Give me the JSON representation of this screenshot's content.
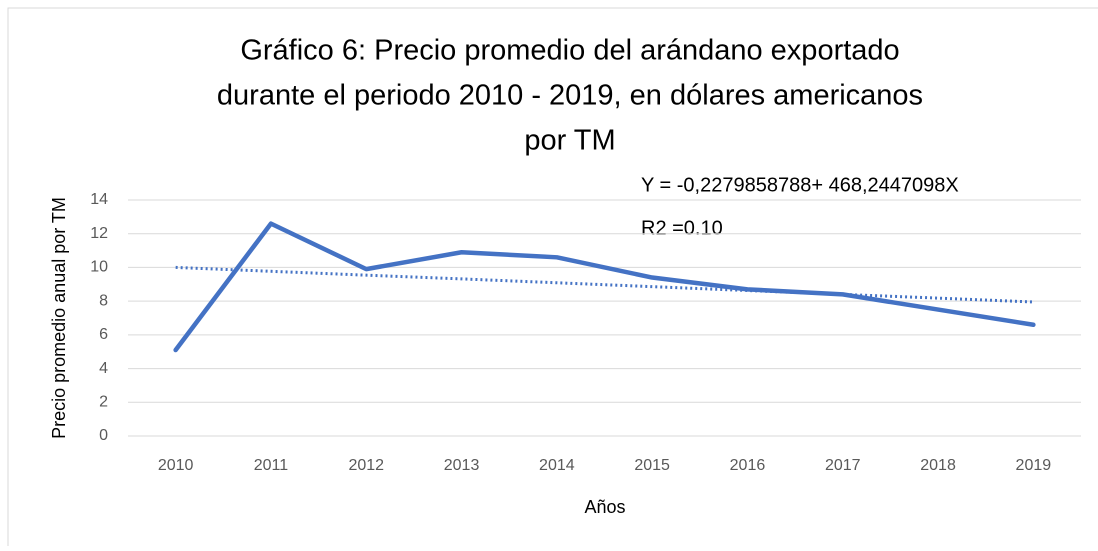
{
  "chart_data": {
    "type": "line",
    "title": [
      "Gráfico 6: Precio promedio del arándano exportado",
      "durante el periodo 2010 - 2019, en dólares americanos",
      "por TM"
    ],
    "annotations": [
      "Y = -0,2279858788+ 468,2447098X",
      "R2 =0.10"
    ],
    "x_label": "Años",
    "y_label": "Precio promedio anual por TM",
    "categories": [
      "2010",
      "2011",
      "2012",
      "2013",
      "2014",
      "2015",
      "2016",
      "2017",
      "2018",
      "2019"
    ],
    "series": [
      {
        "name": "Precio",
        "color": "#4472c4",
        "values": [
          5.1,
          12.6,
          9.9,
          10.9,
          10.6,
          9.4,
          8.7,
          8.4,
          7.5,
          6.6
        ]
      }
    ],
    "trendline": {
      "color": "#4472c4",
      "style": "dotted",
      "values": [
        10.0,
        9.77,
        9.54,
        9.32,
        9.09,
        8.86,
        8.63,
        8.4,
        8.18,
        7.95
      ]
    },
    "ylim": [
      0,
      14
    ],
    "yticks": [
      0,
      2,
      4,
      6,
      8,
      10,
      12,
      14
    ],
    "grid": true
  }
}
